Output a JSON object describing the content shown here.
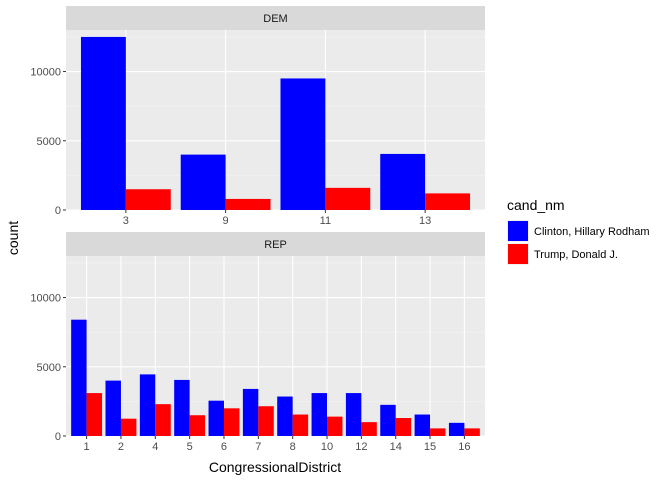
{
  "chart_data": {
    "type": "bar",
    "ylabel": "count",
    "xlabel": "CongressionalDistrict",
    "legend": {
      "title": "cand_nm",
      "placement": "right",
      "entries": [
        {
          "name": "Clinton, Hillary Rodham",
          "color": "#0000ff"
        },
        {
          "name": "Trump, Donald J.",
          "color": "#ff0000"
        }
      ]
    },
    "ylim": [
      0,
      13000
    ],
    "yticks": [
      0,
      5000,
      10000
    ],
    "grid": true,
    "panels": [
      {
        "label": "DEM",
        "categories": [
          "3",
          "9",
          "11",
          "13"
        ],
        "series": [
          {
            "name": "Clinton, Hillary Rodham",
            "values": [
              12500,
              4000,
              9500,
              4050
            ]
          },
          {
            "name": "Trump, Donald J.",
            "values": [
              1500,
              800,
              1600,
              1200
            ]
          }
        ]
      },
      {
        "label": "REP",
        "categories": [
          "1",
          "2",
          "4",
          "5",
          "6",
          "7",
          "8",
          "10",
          "12",
          "14",
          "15",
          "16"
        ],
        "series": [
          {
            "name": "Clinton, Hillary Rodham",
            "values": [
              8400,
              4000,
              4450,
              4050,
              2550,
              3400,
              2850,
              3100,
              3100,
              2250,
              1550,
              950
            ]
          },
          {
            "name": "Trump, Donald J.",
            "values": [
              3100,
              1250,
              2300,
              1500,
              2000,
              2150,
              1550,
              1400,
              1000,
              1300,
              550,
              550
            ]
          }
        ]
      }
    ]
  }
}
